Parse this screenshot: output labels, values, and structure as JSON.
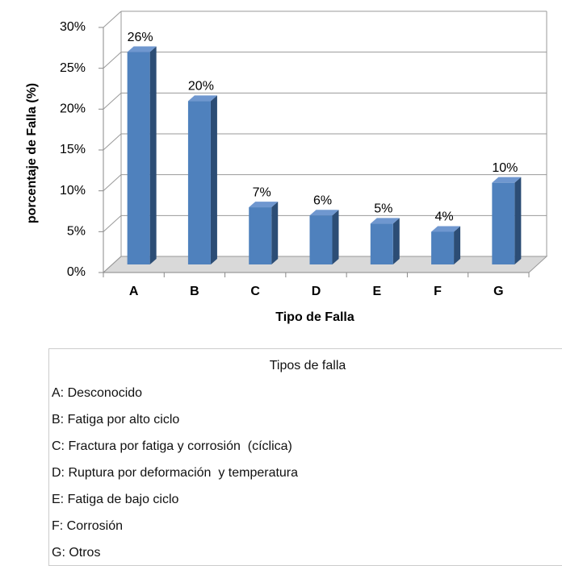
{
  "chart_data": {
    "type": "bar",
    "xlabel": "Tipo de Falla",
    "ylabel": "porcentaje de Falla (%)",
    "categories": [
      "A",
      "B",
      "C",
      "D",
      "E",
      "F",
      "G"
    ],
    "values": [
      26,
      20,
      7,
      6,
      5,
      4,
      10
    ],
    "value_labels": [
      "26%",
      "20%",
      "7%",
      "6%",
      "5%",
      "4%",
      "10%"
    ],
    "color": "#4f81bd",
    "ylim": [
      0,
      30
    ],
    "yticks": [
      {
        "value": 0,
        "label": "0%"
      },
      {
        "value": 5,
        "label": "5%"
      },
      {
        "value": 10,
        "label": "10%"
      },
      {
        "value": 15,
        "label": "15%"
      },
      {
        "value": 20,
        "label": "20%"
      },
      {
        "value": 25,
        "label": "25%"
      },
      {
        "value": 30,
        "label": "30%"
      }
    ],
    "grid": true
  },
  "legend_box": {
    "title": "Tipos de falla",
    "items": [
      "A: Desconocido",
      "B: Fatiga por alto ciclo",
      "C: Fractura por fatiga y corrosión  (cíclica)",
      "D: Ruptura por deformación  y temperatura",
      "E: Fatiga de bajo ciclo",
      "F: Corrosión",
      "G: Otros"
    ]
  }
}
